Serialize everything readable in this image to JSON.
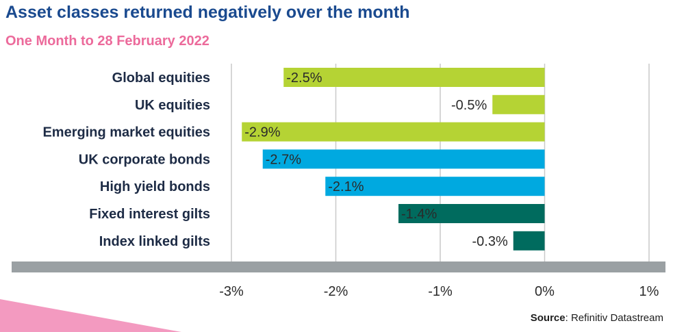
{
  "title": "Asset classes returned negatively over the month",
  "subtitle": "One Month to 28 February 2022",
  "source_label": "Source",
  "source_text": ": Refinitiv Datastream",
  "colors": {
    "title": "#1a4a8f",
    "subtitle": "#ec6a9b",
    "equities": "#b5d334",
    "bonds": "#00a9e0",
    "gilts": "#006b5e",
    "axis_bar": "#9aa0a3",
    "gridline": "#c9c9c9",
    "corner_accent": "#f39ac0"
  },
  "chart_data": {
    "type": "bar",
    "orientation": "horizontal",
    "categories": [
      "Global equities",
      "UK equities",
      "Emerging market equities",
      "UK corporate bonds",
      "High yield bonds",
      "Fixed interest gilts",
      "Index linked gilts"
    ],
    "values": [
      -2.5,
      -0.5,
      -2.9,
      -2.7,
      -2.1,
      -1.4,
      -0.3
    ],
    "value_labels": [
      "-2.5%",
      "-0.5%",
      "-2.9%",
      "-2.7%",
      "-2.1%",
      "-1.4%",
      "-0.3%"
    ],
    "groups": [
      "equities",
      "equities",
      "equities",
      "bonds",
      "bonds",
      "gilts",
      "gilts"
    ],
    "xlim": [
      -3,
      1
    ],
    "xticks": [
      -3,
      -2,
      -1,
      0,
      1
    ],
    "xtick_labels": [
      "-3%",
      "-2%",
      "-1%",
      "0%",
      "1%"
    ],
    "grid": true,
    "title": "Asset classes returned negatively over the month",
    "subtitle": "One Month to 28 February 2022",
    "xlabel": "",
    "ylabel": ""
  }
}
